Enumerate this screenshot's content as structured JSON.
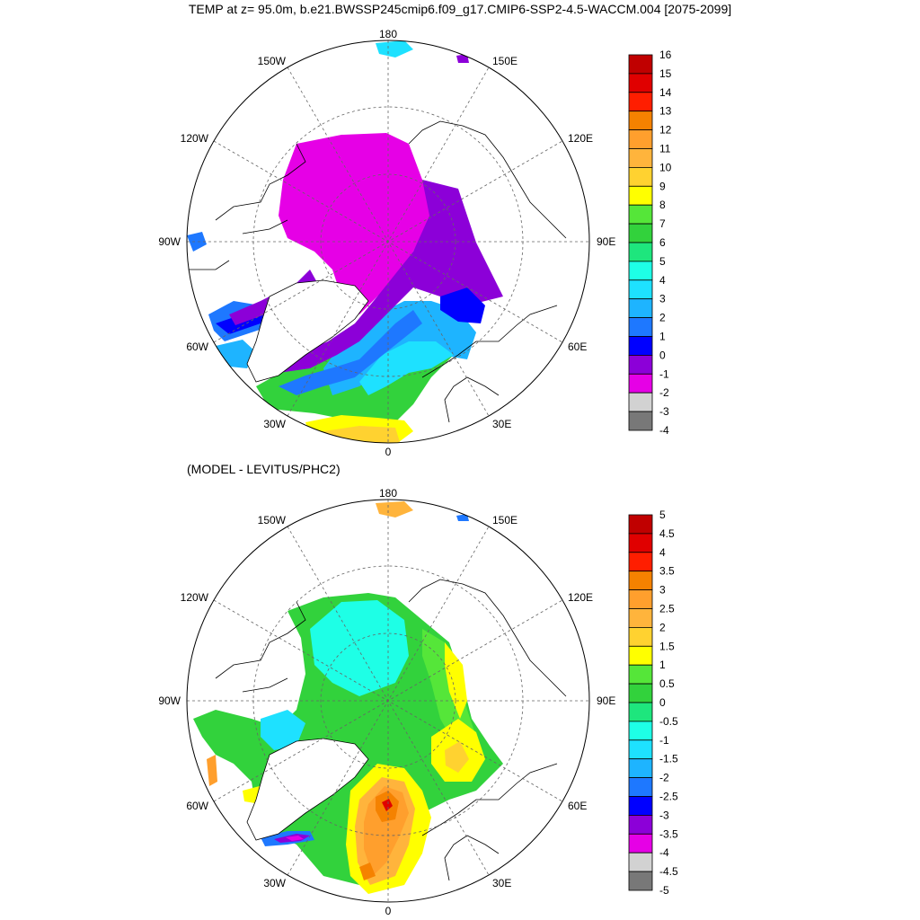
{
  "title": "TEMP at z=  95.0m, b.e21.BWSSP245cmip6.f09_g17.CMIP6-SSP2-4.5-WACCM.004 [2075-2099]",
  "subtitle": "(MODEL - LEVITUS/PHC2)",
  "map_labels": {
    "top": "180",
    "bottom": "0",
    "left": "90W",
    "right": "90E",
    "w150": "150W",
    "e150": "150E",
    "w120": "120W",
    "e120": "120E",
    "w60": "60W",
    "e60": "60E",
    "w30": "30W",
    "e30": "30E"
  },
  "colorbar_top": {
    "labels": [
      "16",
      "15",
      "14",
      "13",
      "12",
      "11",
      "10",
      "9",
      "8",
      "7",
      "6",
      "5",
      "4",
      "3",
      "2",
      "1",
      "0",
      "-1",
      "-2",
      "-3",
      "-4"
    ],
    "colors": [
      "#c00000",
      "#e00000",
      "#ff1e00",
      "#f58200",
      "#ff9f2d",
      "#ffb43c",
      "#ffd230",
      "#ffff00",
      "#55e639",
      "#32d23c",
      "#1ee67d",
      "#1effe6",
      "#1ee1ff",
      "#1eb4ff",
      "#1e78ff",
      "#0000ff",
      "#8c00d8",
      "#e600e6",
      "#d2d2d2",
      "#787878"
    ]
  },
  "colorbar_bottom": {
    "labels": [
      "5",
      "4.5",
      "4",
      "3.5",
      "3",
      "2.5",
      "2",
      "1.5",
      "1",
      "0.5",
      "0",
      "-0.5",
      "-1",
      "-1.5",
      "-2",
      "-2.5",
      "-3",
      "-3.5",
      "-4",
      "-4.5",
      "-5"
    ],
    "colors": [
      "#c00000",
      "#e00000",
      "#ff1e00",
      "#f58200",
      "#ff9f2d",
      "#ffb43c",
      "#ffd230",
      "#ffff00",
      "#55e639",
      "#32d23c",
      "#1ee67d",
      "#1effe6",
      "#1ee1ff",
      "#1eb4ff",
      "#1e78ff",
      "#0000ff",
      "#8c00d8",
      "#e600e6",
      "#d2d2d2",
      "#787878"
    ]
  },
  "colors": {
    "land": "#ffffff",
    "grid": "#666666"
  }
}
